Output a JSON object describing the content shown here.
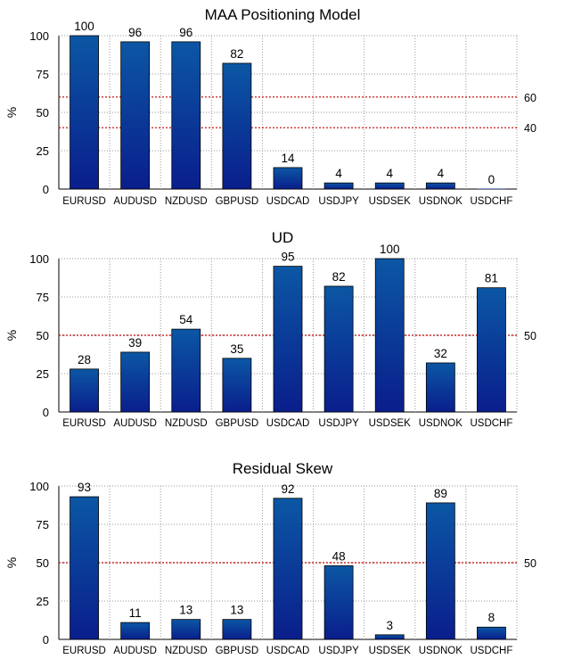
{
  "chart_data": [
    {
      "type": "bar",
      "title": "MAA Positioning Model",
      "ylabel": "%",
      "ylim": [
        0,
        100
      ],
      "yticks": [
        0,
        25,
        50,
        75,
        100
      ],
      "categories": [
        "EURUSD",
        "AUDUSD",
        "NZDUSD",
        "GBPUSD",
        "USDCAD",
        "USDJPY",
        "USDSEK",
        "USDNOK",
        "USDCHF"
      ],
      "values": [
        100,
        96,
        96,
        82,
        14,
        4,
        4,
        4,
        0
      ],
      "value_labels": [
        "100",
        "96",
        "96",
        "82",
        "14",
        "4",
        "4",
        "4",
        "0"
      ],
      "reference_lines": [
        {
          "value": 60,
          "label": "60"
        },
        {
          "value": 40,
          "label": "40"
        }
      ]
    },
    {
      "type": "bar",
      "title": "UD",
      "ylabel": "%",
      "ylim": [
        0,
        100
      ],
      "yticks": [
        0,
        25,
        50,
        75,
        100
      ],
      "categories": [
        "EURUSD",
        "AUDUSD",
        "NZDUSD",
        "GBPUSD",
        "USDCAD",
        "USDJPY",
        "USDSEK",
        "USDNOK",
        "USDCHF"
      ],
      "values": [
        28,
        39,
        54,
        35,
        95,
        82,
        100,
        32,
        81
      ],
      "value_labels": [
        "28",
        "39",
        "54",
        "35",
        "95",
        "82",
        "100",
        "32",
        "81"
      ],
      "reference_lines": [
        {
          "value": 50,
          "label": "50"
        }
      ]
    },
    {
      "type": "bar",
      "title": "Residual Skew",
      "ylabel": "%",
      "ylim": [
        0,
        100
      ],
      "yticks": [
        0,
        25,
        50,
        75,
        100
      ],
      "categories": [
        "EURUSD",
        "AUDUSD",
        "NZDUSD",
        "GBPUSD",
        "USDCAD",
        "USDJPY",
        "USDSEK",
        "USDNOK",
        "USDCHF"
      ],
      "values": [
        93,
        11,
        13,
        13,
        92,
        48,
        3,
        89,
        8
      ],
      "value_labels": [
        "93",
        "11",
        "13",
        "13",
        "92",
        "48",
        "3",
        "89",
        "8"
      ],
      "reference_lines": [
        {
          "value": 50,
          "label": "50"
        }
      ]
    }
  ],
  "colors": {
    "bar_top": "#0b57a4",
    "bar_bottom": "#0a1e8c",
    "reference_line": "#c00000",
    "grid": "#9a9a9a"
  }
}
